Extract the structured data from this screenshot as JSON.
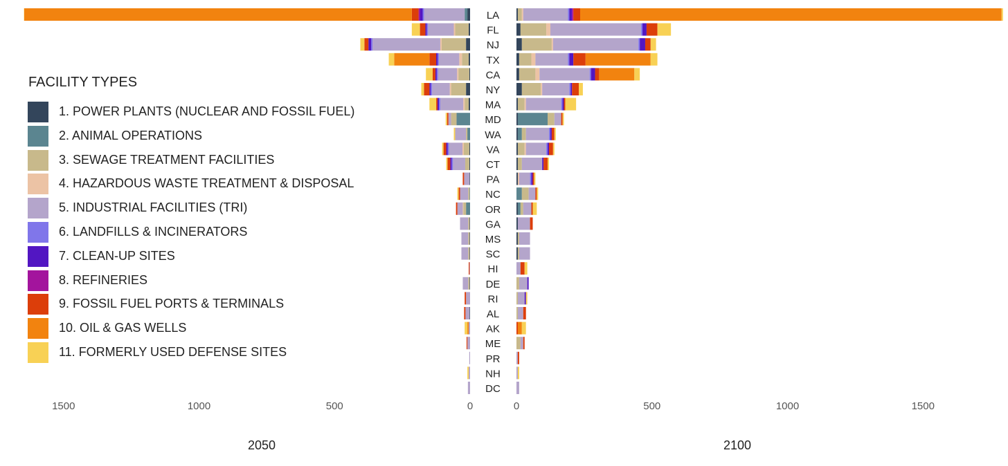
{
  "chart_data": {
    "type": "bar",
    "orientation": "horizontal-diverging",
    "legend": {
      "title": "FACILITY TYPES",
      "items": [
        {
          "name": "1. POWER PLANTS (NUCLEAR AND FOSSIL FUEL)",
          "color": "#33455b"
        },
        {
          "name": "2. ANIMAL OPERATIONS",
          "color": "#5b8590"
        },
        {
          "name": "3. SEWAGE TREATMENT FACILITIES",
          "color": "#c8b98b"
        },
        {
          "name": "4. HAZARDOUS WASTE TREATMENT & DISPOSAL",
          "color": "#ecc3a5"
        },
        {
          "name": "5. INDUSTRIAL FACILITIES (TRI)",
          "color": "#b4a5cb"
        },
        {
          "name": "6. LANDFILLS & INCINERATORS",
          "color": "#8076ea"
        },
        {
          "name": "7. CLEAN-UP SITES",
          "color": "#5216c2"
        },
        {
          "name": "8. REFINERIES",
          "color": "#a3149d"
        },
        {
          "name": "9. FOSSIL FUEL PORTS & TERMINALS",
          "color": "#dc3e0a"
        },
        {
          "name": "10. OIL & GAS WELLS",
          "color": "#f2830f"
        },
        {
          "name": "11. FORMERLY USED DEFENSE SITES",
          "color": "#f8d155"
        }
      ]
    },
    "categories": [
      "LA",
      "FL",
      "NJ",
      "TX",
      "CA",
      "NY",
      "MA",
      "MD",
      "WA",
      "VA",
      "CT",
      "PA",
      "NC",
      "OR",
      "GA",
      "MS",
      "SC",
      "HI",
      "DE",
      "RI",
      "AL",
      "AK",
      "ME",
      "PR",
      "NH",
      "DC"
    ],
    "panels": [
      {
        "title": "2050",
        "direction": "left",
        "xlim": [
          0,
          1750
        ],
        "ticks": [
          0,
          500,
          1000,
          1500
        ],
        "tick_labels": [
          "0",
          "500",
          "1000",
          "1500"
        ],
        "stacks": [
          [
            10,
            10,
            0,
            0,
            150,
            5,
            10,
            5,
            25,
            1430,
            1
          ],
          [
            5,
            0,
            50,
            5,
            95,
            5,
            5,
            0,
            20,
            0,
            30
          ],
          [
            15,
            0,
            90,
            5,
            250,
            5,
            10,
            0,
            15,
            0,
            15
          ],
          [
            5,
            0,
            25,
            10,
            75,
            5,
            5,
            0,
            25,
            130,
            20
          ],
          [
            3,
            0,
            40,
            5,
            70,
            5,
            5,
            0,
            10,
            0,
            25
          ],
          [
            15,
            0,
            55,
            5,
            65,
            5,
            5,
            0,
            20,
            0,
            10
          ],
          [
            5,
            0,
            15,
            5,
            85,
            5,
            5,
            0,
            5,
            0,
            25
          ],
          [
            0,
            50,
            20,
            0,
            10,
            0,
            0,
            0,
            5,
            0,
            5
          ],
          [
            0,
            10,
            5,
            0,
            40,
            0,
            0,
            0,
            0,
            0,
            5
          ],
          [
            3,
            0,
            20,
            5,
            50,
            5,
            5,
            0,
            10,
            0,
            5
          ],
          [
            3,
            0,
            15,
            0,
            45,
            5,
            5,
            0,
            10,
            0,
            5
          ],
          [
            2,
            0,
            0,
            0,
            20,
            0,
            0,
            0,
            5,
            0,
            0
          ],
          [
            0,
            2,
            5,
            0,
            30,
            0,
            0,
            0,
            5,
            0,
            5
          ],
          [
            0,
            15,
            10,
            2,
            20,
            0,
            0,
            0,
            5,
            0,
            0
          ],
          [
            2,
            0,
            5,
            0,
            30,
            0,
            0,
            0,
            0,
            0,
            0
          ],
          [
            2,
            0,
            5,
            0,
            25,
            0,
            0,
            0,
            0,
            0,
            0
          ],
          [
            2,
            0,
            5,
            0,
            25,
            0,
            0,
            0,
            0,
            0,
            0
          ],
          [
            0,
            0,
            0,
            0,
            2,
            0,
            0,
            0,
            3,
            0,
            0
          ],
          [
            2,
            0,
            5,
            0,
            20,
            0,
            0,
            0,
            0,
            0,
            0
          ],
          [
            0,
            0,
            0,
            0,
            15,
            0,
            0,
            0,
            5,
            0,
            0
          ],
          [
            2,
            0,
            0,
            0,
            15,
            0,
            0,
            0,
            5,
            0,
            0
          ],
          [
            0,
            0,
            0,
            0,
            5,
            0,
            0,
            0,
            0,
            5,
            10
          ],
          [
            0,
            0,
            0,
            0,
            10,
            0,
            0,
            0,
            3,
            0,
            0
          ],
          [
            0,
            0,
            0,
            0,
            3,
            0,
            0,
            0,
            0,
            0,
            0
          ],
          [
            0,
            0,
            0,
            0,
            5,
            0,
            0,
            0,
            0,
            0,
            5
          ],
          [
            0,
            0,
            0,
            0,
            8,
            0,
            0,
            0,
            0,
            0,
            0
          ]
        ]
      },
      {
        "title": "2100",
        "direction": "right",
        "xlim": [
          0,
          1800
        ],
        "ticks": [
          0,
          500,
          1000,
          1500
        ],
        "tick_labels": [
          "0",
          "500",
          "1000",
          "1500"
        ],
        "stacks": [
          [
            5,
            0,
            15,
            5,
            165,
            5,
            10,
            5,
            25,
            1555,
            5
          ],
          [
            15,
            0,
            95,
            15,
            335,
            5,
            15,
            0,
            40,
            0,
            50
          ],
          [
            20,
            0,
            110,
            5,
            315,
            5,
            20,
            0,
            20,
            0,
            20
          ],
          [
            10,
            0,
            45,
            15,
            120,
            5,
            15,
            0,
            45,
            240,
            25
          ],
          [
            10,
            0,
            60,
            15,
            185,
            5,
            15,
            0,
            15,
            130,
            20
          ],
          [
            20,
            0,
            70,
            5,
            100,
            5,
            5,
            0,
            25,
            0,
            15
          ],
          [
            5,
            0,
            25,
            5,
            130,
            5,
            5,
            0,
            5,
            0,
            40
          ],
          [
            5,
            110,
            25,
            0,
            25,
            0,
            0,
            0,
            5,
            0,
            5
          ],
          [
            5,
            15,
            15,
            0,
            85,
            5,
            5,
            0,
            10,
            0,
            5
          ],
          [
            5,
            0,
            25,
            5,
            75,
            5,
            5,
            0,
            15,
            0,
            5
          ],
          [
            5,
            0,
            15,
            0,
            75,
            0,
            5,
            0,
            15,
            0,
            5
          ],
          [
            5,
            0,
            0,
            5,
            40,
            5,
            5,
            0,
            5,
            0,
            5
          ],
          [
            0,
            20,
            25,
            0,
            25,
            0,
            0,
            0,
            5,
            0,
            5
          ],
          [
            5,
            10,
            10,
            0,
            30,
            0,
            0,
            0,
            5,
            0,
            15
          ],
          [
            5,
            0,
            0,
            0,
            45,
            0,
            0,
            0,
            10,
            0,
            0
          ],
          [
            5,
            0,
            5,
            0,
            40,
            0,
            0,
            0,
            0,
            0,
            0
          ],
          [
            5,
            0,
            5,
            0,
            40,
            0,
            0,
            0,
            0,
            0,
            0
          ],
          [
            0,
            0,
            0,
            0,
            15,
            0,
            0,
            0,
            15,
            0,
            10
          ],
          [
            0,
            0,
            10,
            0,
            30,
            0,
            5,
            0,
            0,
            0,
            0
          ],
          [
            0,
            0,
            5,
            0,
            25,
            0,
            5,
            0,
            0,
            0,
            5
          ],
          [
            0,
            0,
            5,
            0,
            20,
            0,
            0,
            0,
            10,
            0,
            0
          ],
          [
            0,
            0,
            0,
            0,
            0,
            0,
            0,
            0,
            5,
            15,
            15
          ],
          [
            0,
            0,
            15,
            0,
            10,
            0,
            0,
            0,
            5,
            0,
            0
          ],
          [
            0,
            0,
            0,
            0,
            5,
            0,
            0,
            0,
            5,
            0,
            0
          ],
          [
            0,
            0,
            0,
            0,
            5,
            0,
            0,
            0,
            0,
            0,
            5
          ],
          [
            0,
            0,
            0,
            0,
            10,
            0,
            0,
            0,
            0,
            0,
            0
          ]
        ]
      }
    ]
  }
}
